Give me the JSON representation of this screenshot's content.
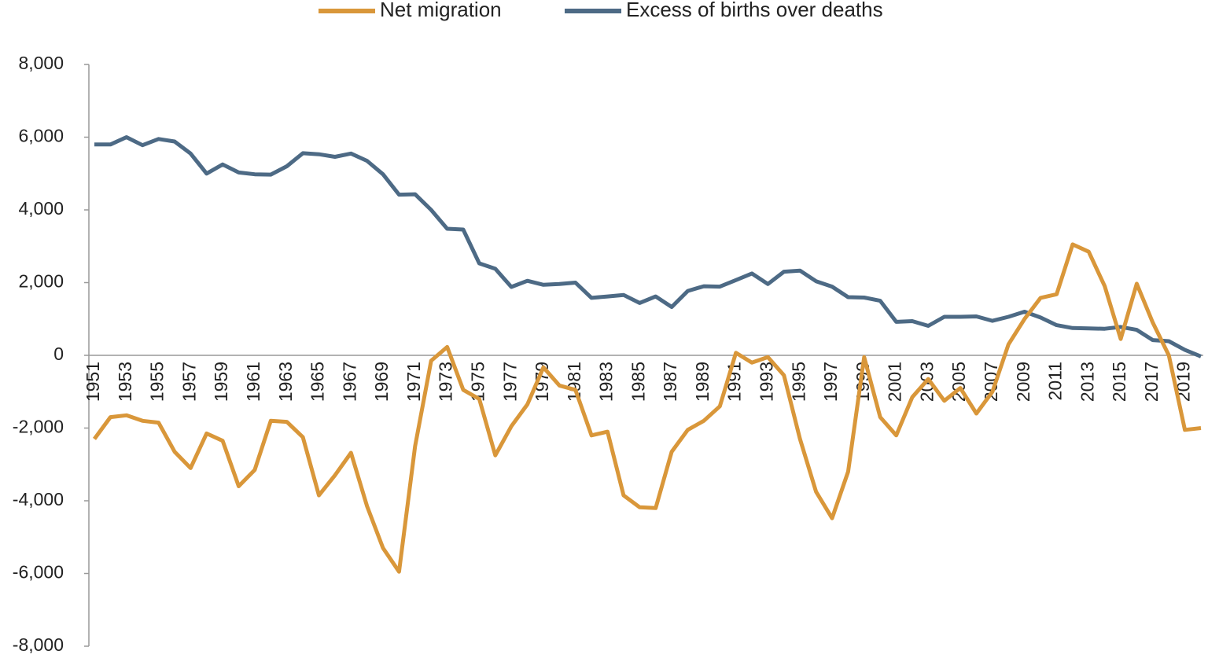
{
  "chart_data": {
    "type": "line",
    "categories": [
      "1951",
      null,
      "1953",
      null,
      "1955",
      null,
      "1957",
      null,
      "1959",
      null,
      "1961",
      null,
      "1963",
      null,
      "1965",
      null,
      "1967",
      null,
      "1969",
      null,
      "1971",
      null,
      "1973",
      null,
      "1975",
      null,
      "1977",
      null,
      "1979",
      null,
      "1981",
      null,
      "1983",
      null,
      "1985",
      null,
      "1987",
      null,
      "1989",
      null,
      "1991",
      null,
      "1993",
      null,
      "1995",
      null,
      "1997",
      null,
      "1999",
      null,
      "2001",
      null,
      "2003",
      null,
      "2005",
      null,
      "2007",
      null,
      "2009",
      null,
      "2011",
      null,
      "2013",
      null,
      "2015",
      null,
      "2017",
      null,
      "2019",
      null
    ],
    "series": [
      {
        "name": "Net migration",
        "color": "#d9973a",
        "values": [
          -2300,
          -1700,
          -1650,
          -1800,
          -1850,
          -2650,
          -3100,
          -2150,
          -2350,
          -3600,
          -3150,
          -1800,
          -1830,
          -2250,
          -3850,
          -3300,
          -2680,
          -4150,
          -5300,
          -5950,
          -2500,
          -150,
          230,
          -950,
          -1200,
          -2750,
          -1950,
          -1350,
          -330,
          -830,
          -950,
          -2200,
          -2100,
          -3850,
          -4180,
          -4200,
          -2650,
          -2050,
          -1800,
          -1400,
          70,
          -200,
          -50,
          -550,
          -2300,
          -3750,
          -4480,
          -3200,
          -50,
          -1700,
          -2200,
          -1150,
          -650,
          -1250,
          -900,
          -1600,
          -1000,
          300,
          1000,
          1580,
          1680,
          3050,
          2850,
          1900,
          450,
          1970,
          900,
          0,
          -2050,
          -2000
        ]
      },
      {
        "name": "Excess of births over deaths",
        "color": "#4d6a85",
        "values": [
          5800,
          5800,
          6000,
          5780,
          5950,
          5880,
          5550,
          5000,
          5250,
          5030,
          4980,
          4970,
          5200,
          5560,
          5530,
          5460,
          5550,
          5350,
          4980,
          4420,
          4430,
          4000,
          3480,
          3460,
          2530,
          2380,
          1880,
          2050,
          1940,
          1960,
          2000,
          1580,
          1620,
          1660,
          1440,
          1620,
          1330,
          1770,
          1900,
          1890,
          2070,
          2250,
          1960,
          2300,
          2330,
          2040,
          1890,
          1600,
          1590,
          1500,
          920,
          940,
          810,
          1060,
          1060,
          1070,
          950,
          1060,
          1200,
          1040,
          830,
          750,
          740,
          730,
          780,
          700,
          420,
          390,
          150,
          -30
        ]
      }
    ],
    "ylim": [
      -8000,
      8000
    ],
    "yticks": [
      {
        "value": -8000,
        "label": "-8,000"
      },
      {
        "value": -6000,
        "label": "-6,000"
      },
      {
        "value": -4000,
        "label": "-4,000"
      },
      {
        "value": -2000,
        "label": "-2,000"
      },
      0,
      {
        "value": 2000,
        "label": "2,000"
      },
      {
        "value": 4000,
        "label": "4,000"
      },
      {
        "value": 6000,
        "label": "6,000"
      },
      {
        "value": 8000,
        "label": "8,000"
      }
    ],
    "legend": "top"
  }
}
